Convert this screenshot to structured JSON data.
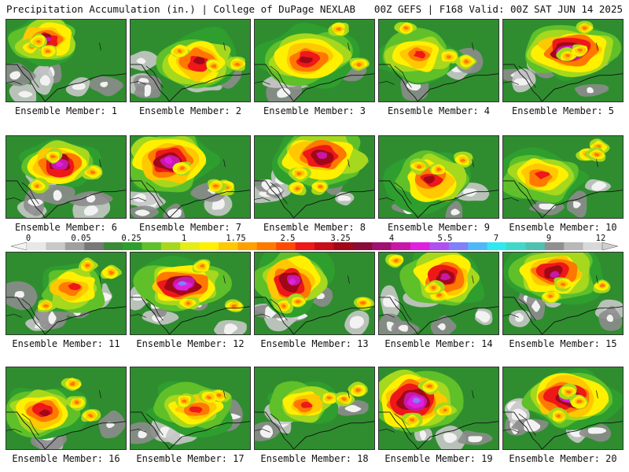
{
  "header": {
    "left": "Precipitation Accumulation (in.) | College of DuPage NEXLAB",
    "right": "00Z GEFS | F168 Valid: 00Z SAT JUN 14 2025"
  },
  "panels": [
    {
      "label": "Ensemble Member: 1"
    },
    {
      "label": "Ensemble Member: 2"
    },
    {
      "label": "Ensemble Member: 3"
    },
    {
      "label": "Ensemble Member: 4"
    },
    {
      "label": "Ensemble Member: 5"
    },
    {
      "label": "Ensemble Member: 6"
    },
    {
      "label": "Ensemble Member: 7"
    },
    {
      "label": "Ensemble Member: 8"
    },
    {
      "label": "Ensemble Member: 9"
    },
    {
      "label": "Ensemble Member: 10"
    },
    {
      "label": "Ensemble Member: 11"
    },
    {
      "label": "Ensemble Member: 12"
    },
    {
      "label": "Ensemble Member: 13"
    },
    {
      "label": "Ensemble Member: 14"
    },
    {
      "label": "Ensemble Member: 15"
    },
    {
      "label": "Ensemble Member: 16"
    },
    {
      "label": "Ensemble Member: 17"
    },
    {
      "label": "Ensemble Member: 18"
    },
    {
      "label": "Ensemble Member: 19"
    },
    {
      "label": "Ensemble Member: 20"
    }
  ],
  "colorbar": {
    "labels": [
      "0",
      "0.05",
      "0.25",
      "1",
      "1.75",
      "2.5",
      "3.25",
      "4",
      "5.5",
      "7",
      "9",
      "12"
    ],
    "colors": [
      "#e8e8e8",
      "#c8c8c8",
      "#a0a0a0",
      "#787878",
      "#3a8a3a",
      "#2e9e2e",
      "#5fc02a",
      "#a6d81e",
      "#e6ec18",
      "#fff000",
      "#ffc800",
      "#ffa000",
      "#ff7800",
      "#ff4a00",
      "#ee1818",
      "#c80c18",
      "#a00818",
      "#8a0a3a",
      "#a01070",
      "#c818a8",
      "#e020e0",
      "#b050f0",
      "#8080f8",
      "#50b8f8",
      "#30e8f0",
      "#40d8c8",
      "#50c0b0",
      "#909090",
      "#b8b8b8",
      "#d8d8d8"
    ]
  }
}
